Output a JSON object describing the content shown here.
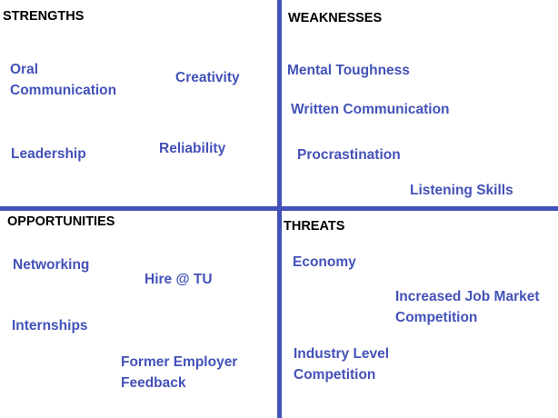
{
  "colors": {
    "accent": "#4352b8",
    "heading": "#000000",
    "background": "#ffffff"
  },
  "quadrants": {
    "strengths": {
      "title": "STRENGTHS",
      "items": [
        {
          "lines": [
            "Oral",
            "Communication"
          ]
        },
        {
          "lines": [
            "Creativity"
          ]
        },
        {
          "lines": [
            "Leadership"
          ]
        },
        {
          "lines": [
            "Reliability"
          ]
        }
      ]
    },
    "weaknesses": {
      "title": "WEAKNESSES",
      "items": [
        {
          "lines": [
            "Mental Toughness"
          ]
        },
        {
          "lines": [
            "Written Communication"
          ]
        },
        {
          "lines": [
            "Procrastination"
          ]
        },
        {
          "lines": [
            "Listening Skills"
          ]
        }
      ]
    },
    "opportunities": {
      "title": "OPPORTUNITIES",
      "items": [
        {
          "lines": [
            "Networking"
          ]
        },
        {
          "lines": [
            "Hire @ TU"
          ]
        },
        {
          "lines": [
            "Internships"
          ]
        },
        {
          "lines": [
            "Former Employer",
            "Feedback"
          ]
        }
      ]
    },
    "threats": {
      "title": "THREATS",
      "items": [
        {
          "lines": [
            "Economy"
          ]
        },
        {
          "lines": [
            "Increased Job Market",
            "Competition"
          ]
        },
        {
          "lines": [
            "Industry Level",
            "Competition"
          ]
        }
      ]
    }
  }
}
